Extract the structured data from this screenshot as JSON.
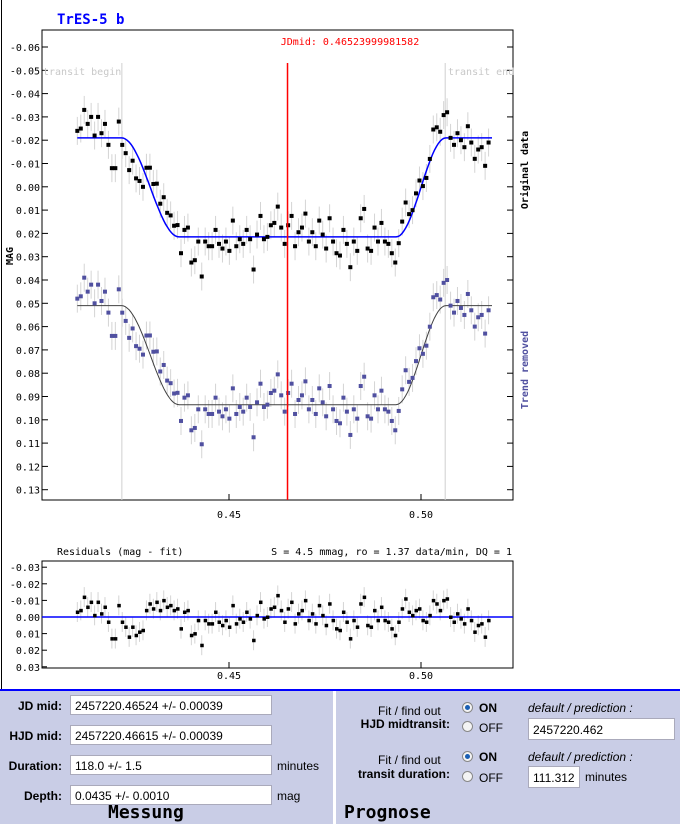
{
  "chart_data": {
    "type": "scatter",
    "title": "TrES-5 b",
    "ylabel": "MAG",
    "xlim": [
      0.4013,
      0.524
    ],
    "ylim": [
      -0.067,
      0.137
    ],
    "x_ticks": [
      "0.45",
      "0.50"
    ],
    "x_tick_values": [
      0.45,
      0.5
    ],
    "y_ticks": [
      "-0.06",
      "-0.05",
      "-0.04",
      "-0.03",
      "-0.02",
      "-0.01",
      "0.00",
      "0.01",
      "0.02",
      "0.03",
      "0.04",
      "0.05",
      "0.06",
      "0.07",
      "0.08",
      "0.09",
      "0.10",
      "0.11",
      "0.12",
      "0.13"
    ],
    "y_tick_values": [
      -0.06,
      -0.05,
      -0.04,
      -0.03,
      -0.02,
      -0.01,
      0.0,
      0.01,
      0.02,
      0.03,
      0.04,
      0.05,
      0.06,
      0.07,
      0.08,
      0.09,
      0.1,
      0.11,
      0.12,
      0.13
    ],
    "jdmid_label": "JDmid: 0.46523999981582",
    "jdmid": 0.46524,
    "transit_begin_label": "transit begin",
    "transit_begin": 0.4221,
    "transit_end_label": "transit end",
    "transit_end": 0.5063,
    "series": [
      {
        "name": "Original data",
        "baseline": -0.021,
        "color": "#000000",
        "fit_color": "#0000ff"
      },
      {
        "name": "Trend removed",
        "baseline": 0.051,
        "color": "#5050a0",
        "fit_color": "#404040"
      }
    ],
    "transit_depth": 0.0425,
    "model_contacts": [
      0.422,
      0.437,
      0.4935,
      0.5065
    ],
    "error_bar": 0.006,
    "x_start": 0.4105,
    "x_step": 0.0009,
    "residuals_panel": {
      "title": "Residuals (mag - fit)",
      "stats": "S = 4.5 mmag, ro = 1.37 data/min, DQ = 1",
      "y_ticks": [
        "-0.03",
        "-0.02",
        "-0.01",
        "0.00",
        "0.01",
        "0.02",
        "0.03"
      ],
      "y_tick_values": [
        -0.03,
        -0.02,
        -0.01,
        0.0,
        0.01,
        0.02,
        0.03
      ],
      "x_ticks": [
        "0.45",
        "0.50"
      ],
      "values": [
        -0.003,
        -0.004,
        -0.012,
        -0.006,
        -0.009,
        -0.001,
        -0.009,
        -0.002,
        -0.006,
        0.003,
        0.013,
        0.013,
        -0.007,
        0.003,
        0.006,
        0.012,
        0.006,
        0.011,
        0.009,
        0.008,
        -0.004,
        -0.008,
        -0.005,
        -0.009,
        -0.004,
        -0.01,
        -0.006,
        -0.007,
        -0.004,
        -0.005,
        0.007,
        -0.003,
        -0.004,
        0.011,
        0.01,
        0.002,
        0.017,
        0.002,
        0.004,
        0.004,
        -0.003,
        0.003,
        0.005,
        0.002,
        0.006,
        -0.007,
        0.004,
        0.001,
        0.003,
        -0.003,
        0.001,
        0.014,
        -0.001,
        -0.009,
        0.001,
        0.0,
        -0.005,
        -0.006,
        -0.013,
        -0.004,
        0.003,
        -0.005,
        -0.009,
        0.004,
        -0.002,
        -0.004,
        -0.01,
        0.002,
        -0.002,
        0.004,
        -0.007,
        -0.001,
        0.005,
        -0.008,
        0.002,
        0.007,
        0.008,
        -0.003,
        0.003,
        0.013,
        0.002,
        0.006,
        -0.008,
        -0.012,
        0.005,
        0.006,
        -0.004,
        0.002,
        -0.006,
        0.002,
        0.003,
        0.007,
        0.011,
        0.003,
        -0.005,
        -0.011,
        -0.003,
        -0.001,
        -0.004,
        -0.005,
        0.002,
        0.003,
        -0.001,
        -0.01,
        -0.008,
        -0.004,
        -0.01,
        -0.011,
        0.0,
        0.003,
        -0.002,
        0.001,
        0.004,
        -0.005,
        0.002,
        0.009,
        0.005,
        0.004,
        0.012,
        0.002
      ]
    }
  },
  "measurement": {
    "title": "Messung",
    "jd_mid_label": "JD mid:",
    "jd_mid_value": "2457220.46524 +/- 0.00039",
    "hjd_mid_label": "HJD mid:",
    "hjd_mid_value": "2457220.46615 +/- 0.00039",
    "duration_label": "Duration:",
    "duration_value": "118.0 +/- 1.5",
    "duration_unit": "minutes",
    "depth_label": "Depth:",
    "depth_value": "0.0435 +/- 0.0010",
    "depth_unit": "mag"
  },
  "prognosis": {
    "title": "Prognose",
    "fit_label": "Fit / find out",
    "on_label": "ON",
    "off_label": "OFF",
    "default_label": "default / prediction :",
    "midtransit_label": "HJD midtransit:",
    "midtransit_value": "2457220.462",
    "duration_label": "transit duration:",
    "duration_value": "111.312",
    "duration_unit": "minutes"
  }
}
